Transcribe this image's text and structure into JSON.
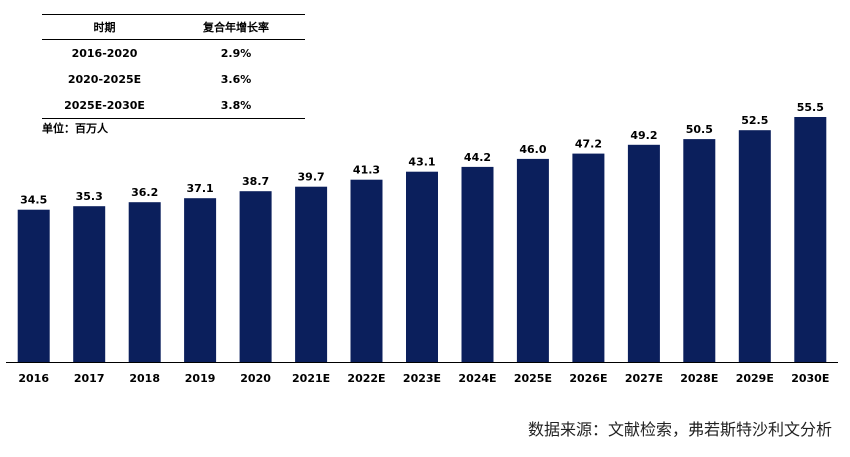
{
  "cagr_table": {
    "headers": [
      "时期",
      "复合年增长率"
    ],
    "rows": [
      [
        "2016-2020",
        "2.9%"
      ],
      [
        "2020-2025E",
        "3.6%"
      ],
      [
        "2025E-2030E",
        "3.8%"
      ]
    ]
  },
  "unit_label": "单位：百万人",
  "source_note": "数据来源：文献检索，弗若斯特沙利文分析",
  "chart_data": {
    "type": "bar",
    "categories": [
      "2016",
      "2017",
      "2018",
      "2019",
      "2020",
      "2021E",
      "2022E",
      "2023E",
      "2024E",
      "2025E",
      "2026E",
      "2027E",
      "2028E",
      "2029E",
      "2030E"
    ],
    "values": [
      34.5,
      35.3,
      36.2,
      37.1,
      38.7,
      39.7,
      41.3,
      43.1,
      44.2,
      46.0,
      47.2,
      49.2,
      50.5,
      52.5,
      55.5
    ],
    "value_labels": [
      "34.5",
      "35.3",
      "36.2",
      "37.1",
      "38.7",
      "39.7",
      "41.3",
      "43.1",
      "44.2",
      "46.0",
      "47.2",
      "49.2",
      "50.5",
      "52.5",
      "55.5"
    ],
    "bar_color": "#0b1f5c",
    "ylim": [
      0,
      55.5
    ],
    "grid": false
  }
}
